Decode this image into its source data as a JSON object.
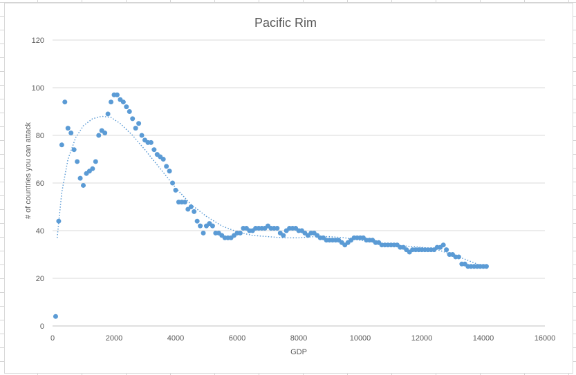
{
  "chart_data": {
    "type": "scatter",
    "title": "Pacific Rim",
    "xlabel": "GDP",
    "ylabel": "# of countries you can attack",
    "xlim": [
      0,
      16000
    ],
    "ylim": [
      0,
      120
    ],
    "x_ticks": [
      "0",
      "2000",
      "4000",
      "6000",
      "8000",
      "10000",
      "12000",
      "14000",
      "16000"
    ],
    "y_ticks": [
      "0",
      "20",
      "40",
      "60",
      "80",
      "100",
      "120"
    ],
    "grid": "horizontal",
    "legend": "none",
    "colors": {
      "points": "#5b9bd5",
      "trendline": "#5b9bd5"
    },
    "series": [
      {
        "points": [
          [
            100,
            4
          ],
          [
            200,
            44
          ],
          [
            300,
            76
          ],
          [
            400,
            94
          ],
          [
            500,
            83
          ],
          [
            600,
            81
          ],
          [
            700,
            74
          ],
          [
            800,
            69
          ],
          [
            900,
            62
          ],
          [
            1000,
            59
          ],
          [
            1100,
            64
          ],
          [
            1200,
            65
          ],
          [
            1300,
            66
          ],
          [
            1400,
            69
          ],
          [
            1500,
            80
          ],
          [
            1600,
            82
          ],
          [
            1700,
            81
          ],
          [
            1800,
            89
          ],
          [
            1900,
            94
          ],
          [
            2000,
            97
          ],
          [
            2100,
            97
          ],
          [
            2200,
            95
          ],
          [
            2300,
            94
          ],
          [
            2400,
            92
          ],
          [
            2500,
            90
          ],
          [
            2600,
            87
          ],
          [
            2700,
            83
          ],
          [
            2800,
            85
          ],
          [
            2900,
            80
          ],
          [
            3000,
            78
          ],
          [
            3100,
            77
          ],
          [
            3200,
            77
          ],
          [
            3300,
            74
          ],
          [
            3400,
            72
          ],
          [
            3500,
            71
          ],
          [
            3600,
            70
          ],
          [
            3700,
            67
          ],
          [
            3800,
            65
          ],
          [
            3900,
            60
          ],
          [
            4000,
            57
          ],
          [
            4100,
            52
          ],
          [
            4200,
            52
          ],
          [
            4300,
            52
          ],
          [
            4400,
            49
          ],
          [
            4500,
            50
          ],
          [
            4600,
            48
          ],
          [
            4700,
            44
          ],
          [
            4800,
            42
          ],
          [
            4900,
            39
          ],
          [
            5000,
            42
          ],
          [
            5100,
            43
          ],
          [
            5200,
            42
          ],
          [
            5300,
            39
          ],
          [
            5400,
            39
          ],
          [
            5500,
            38
          ],
          [
            5600,
            37
          ],
          [
            5700,
            37
          ],
          [
            5800,
            37
          ],
          [
            5900,
            38
          ],
          [
            6000,
            39
          ],
          [
            6100,
            39
          ],
          [
            6200,
            41
          ],
          [
            6300,
            41
          ],
          [
            6400,
            40
          ],
          [
            6500,
            40
          ],
          [
            6600,
            41
          ],
          [
            6700,
            41
          ],
          [
            6800,
            41
          ],
          [
            6900,
            41
          ],
          [
            7000,
            42
          ],
          [
            7100,
            41
          ],
          [
            7200,
            41
          ],
          [
            7300,
            41
          ],
          [
            7400,
            39
          ],
          [
            7500,
            38
          ],
          [
            7600,
            40
          ],
          [
            7700,
            41
          ],
          [
            7800,
            41
          ],
          [
            7900,
            41
          ],
          [
            8000,
            40
          ],
          [
            8100,
            40
          ],
          [
            8200,
            39
          ],
          [
            8300,
            38
          ],
          [
            8400,
            39
          ],
          [
            8500,
            39
          ],
          [
            8600,
            38
          ],
          [
            8700,
            37
          ],
          [
            8800,
            37
          ],
          [
            8900,
            36
          ],
          [
            9000,
            36
          ],
          [
            9100,
            36
          ],
          [
            9200,
            36
          ],
          [
            9300,
            36
          ],
          [
            9400,
            35
          ],
          [
            9500,
            34
          ],
          [
            9600,
            35
          ],
          [
            9700,
            36
          ],
          [
            9800,
            37
          ],
          [
            9900,
            37
          ],
          [
            10000,
            37
          ],
          [
            10100,
            37
          ],
          [
            10200,
            36
          ],
          [
            10300,
            36
          ],
          [
            10400,
            36
          ],
          [
            10500,
            35
          ],
          [
            10600,
            35
          ],
          [
            10700,
            34
          ],
          [
            10800,
            34
          ],
          [
            10900,
            34
          ],
          [
            11000,
            34
          ],
          [
            11100,
            34
          ],
          [
            11200,
            34
          ],
          [
            11300,
            33
          ],
          [
            11400,
            33
          ],
          [
            11500,
            32
          ],
          [
            11600,
            31
          ],
          [
            11700,
            32
          ],
          [
            11800,
            32
          ],
          [
            11900,
            32
          ],
          [
            12000,
            32
          ],
          [
            12100,
            32
          ],
          [
            12200,
            32
          ],
          [
            12300,
            32
          ],
          [
            12400,
            32
          ],
          [
            12500,
            33
          ],
          [
            12600,
            33
          ],
          [
            12700,
            34
          ],
          [
            12800,
            32
          ],
          [
            12900,
            30
          ],
          [
            13000,
            30
          ],
          [
            13100,
            29
          ],
          [
            13200,
            29
          ],
          [
            13300,
            26
          ],
          [
            13400,
            26
          ],
          [
            13500,
            25
          ],
          [
            13600,
            25
          ],
          [
            13700,
            25
          ],
          [
            13800,
            25
          ],
          [
            13900,
            25
          ],
          [
            14000,
            25
          ],
          [
            14100,
            25
          ]
        ]
      }
    ],
    "trendline": {
      "style": "dotted",
      "points": [
        [
          150,
          37
        ],
        [
          300,
          56
        ],
        [
          500,
          70
        ],
        [
          750,
          79
        ],
        [
          1000,
          84
        ],
        [
          1300,
          87
        ],
        [
          1600,
          88
        ],
        [
          1900,
          87.5
        ],
        [
          2200,
          85
        ],
        [
          2600,
          80
        ],
        [
          3000,
          74
        ],
        [
          3500,
          66
        ],
        [
          4000,
          58
        ],
        [
          4500,
          51
        ],
        [
          5000,
          46
        ],
        [
          5500,
          42
        ],
        [
          6000,
          39.5
        ],
        [
          6500,
          38
        ],
        [
          7000,
          37.5
        ],
        [
          7500,
          37
        ],
        [
          8000,
          37
        ],
        [
          8500,
          37.5
        ],
        [
          9000,
          37.5
        ],
        [
          9500,
          37
        ],
        [
          10000,
          36
        ],
        [
          10500,
          35
        ],
        [
          11000,
          34
        ],
        [
          11500,
          33.5
        ],
        [
          12000,
          33
        ],
        [
          12500,
          32
        ],
        [
          13000,
          30
        ],
        [
          13500,
          27.5
        ],
        [
          14000,
          25
        ]
      ]
    }
  }
}
